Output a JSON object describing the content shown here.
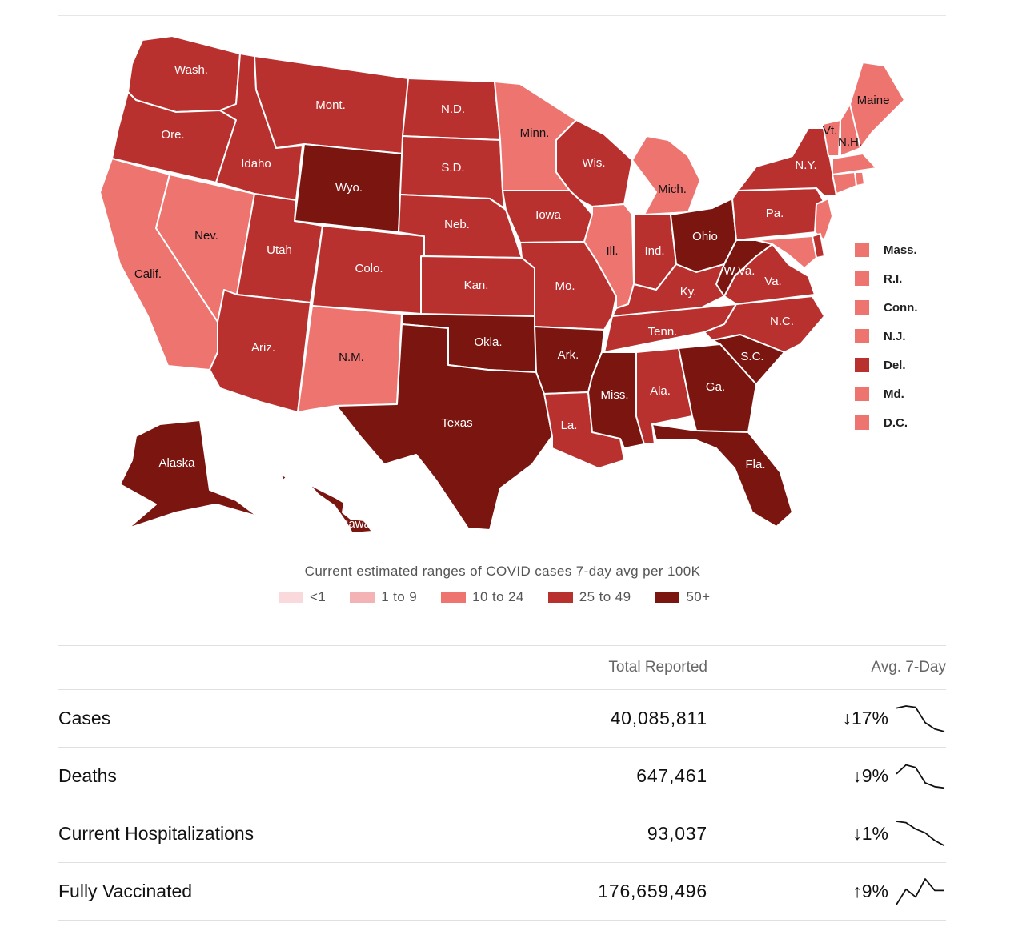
{
  "legend": {
    "caption": "Current estimated ranges of COVID cases 7-day avg per 100K",
    "bins": [
      {
        "label": "<1",
        "color": "#f9d9dc"
      },
      {
        "label": "1 to 9",
        "color": "#f3b2b4"
      },
      {
        "label": "10 to 24",
        "color": "#ee7470"
      },
      {
        "label": "25 to 49",
        "color": "#b9312f"
      },
      {
        "label": "50+",
        "color": "#7a1510"
      }
    ]
  },
  "states": [
    {
      "name": "Wash.",
      "bin": 3
    },
    {
      "name": "Ore.",
      "bin": 3
    },
    {
      "name": "Calif.",
      "bin": 2
    },
    {
      "name": "Nev.",
      "bin": 2
    },
    {
      "name": "Idaho",
      "bin": 3
    },
    {
      "name": "Mont.",
      "bin": 3
    },
    {
      "name": "Wyo.",
      "bin": 4
    },
    {
      "name": "Utah",
      "bin": 3
    },
    {
      "name": "Ariz.",
      "bin": 3
    },
    {
      "name": "Colo.",
      "bin": 3
    },
    {
      "name": "N.M.",
      "bin": 2
    },
    {
      "name": "N.D.",
      "bin": 3
    },
    {
      "name": "S.D.",
      "bin": 3
    },
    {
      "name": "Neb.",
      "bin": 3
    },
    {
      "name": "Kan.",
      "bin": 3
    },
    {
      "name": "Okla.",
      "bin": 4
    },
    {
      "name": "Texas",
      "bin": 4
    },
    {
      "name": "Minn.",
      "bin": 2
    },
    {
      "name": "Iowa",
      "bin": 3
    },
    {
      "name": "Mo.",
      "bin": 3
    },
    {
      "name": "Ark.",
      "bin": 4
    },
    {
      "name": "La.",
      "bin": 3
    },
    {
      "name": "Wis.",
      "bin": 3
    },
    {
      "name": "Ill.",
      "bin": 2
    },
    {
      "name": "Mich.",
      "bin": 2
    },
    {
      "name": "Ind.",
      "bin": 3
    },
    {
      "name": "Ohio",
      "bin": 4
    },
    {
      "name": "Ky.",
      "bin": 3
    },
    {
      "name": "Tenn.",
      "bin": 3
    },
    {
      "name": "Miss.",
      "bin": 4
    },
    {
      "name": "Ala.",
      "bin": 3
    },
    {
      "name": "Ga.",
      "bin": 4
    },
    {
      "name": "Fla.",
      "bin": 4
    },
    {
      "name": "S.C.",
      "bin": 4
    },
    {
      "name": "N.C.",
      "bin": 3
    },
    {
      "name": "Va.",
      "bin": 3
    },
    {
      "name": "W.Va.",
      "bin": 4
    },
    {
      "name": "Pa.",
      "bin": 3
    },
    {
      "name": "N.Y.",
      "bin": 3
    },
    {
      "name": "Vt.",
      "bin": 2
    },
    {
      "name": "N.H.",
      "bin": 2
    },
    {
      "name": "Maine",
      "bin": 2
    },
    {
      "name": "Alaska",
      "bin": 4
    },
    {
      "name": "Hawaii",
      "bin": 4
    }
  ],
  "small_states": [
    {
      "name": "Mass.",
      "bin": 2
    },
    {
      "name": "R.I.",
      "bin": 2
    },
    {
      "name": "Conn.",
      "bin": 2
    },
    {
      "name": "N.J.",
      "bin": 2
    },
    {
      "name": "Del.",
      "bin": 3
    },
    {
      "name": "Md.",
      "bin": 2
    },
    {
      "name": "D.C.",
      "bin": 2
    }
  ],
  "table": {
    "headers": {
      "metric": "",
      "total": "Total Reported",
      "avg": "Avg. 7-Day"
    },
    "rows": [
      {
        "metric": "Cases",
        "total": "40,085,811",
        "change": "↓17%",
        "trend": [
          0.92,
          1.0,
          0.95,
          0.35,
          0.1,
          0.0
        ]
      },
      {
        "metric": "Deaths",
        "total": "647,461",
        "change": "↓9%",
        "trend": [
          0.6,
          0.95,
          0.85,
          0.25,
          0.1,
          0.05
        ]
      },
      {
        "metric": "Current Hospitalizations",
        "total": "93,037",
        "change": "↓1%",
        "trend": [
          1.0,
          0.95,
          0.7,
          0.55,
          0.25,
          0.05
        ]
      },
      {
        "metric": "Fully Vaccinated",
        "total": "176,659,496",
        "change": "↑9%",
        "trend": [
          0.0,
          0.6,
          0.3,
          1.0,
          0.55,
          0.55
        ]
      }
    ]
  }
}
